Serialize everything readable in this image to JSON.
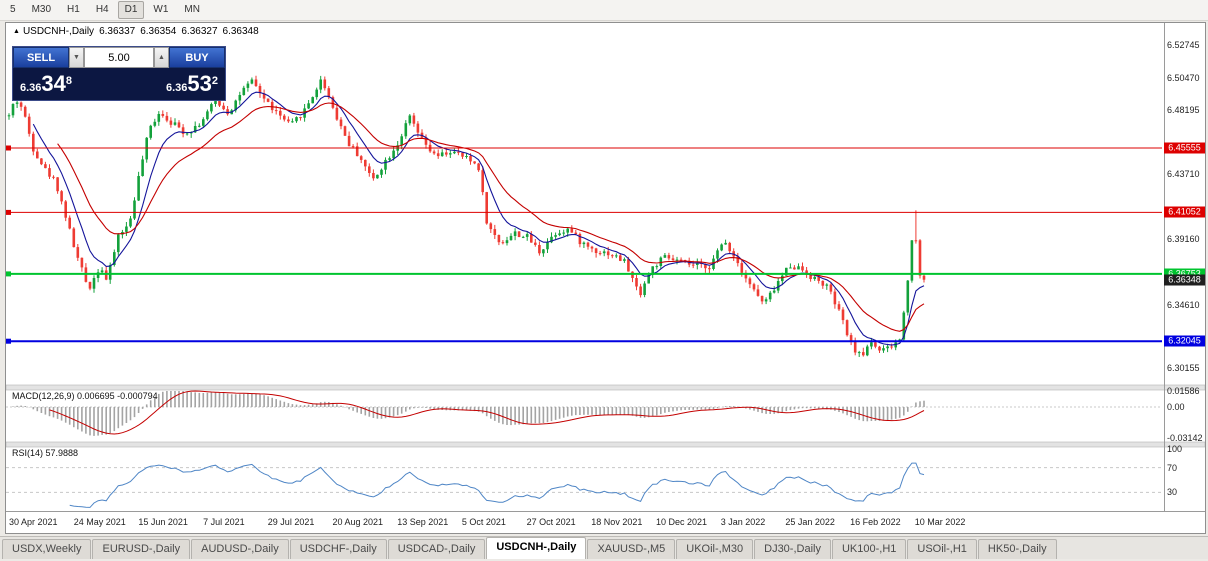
{
  "toolbar": {
    "timeframes": [
      {
        "label": "5",
        "active": false
      },
      {
        "label": "M30",
        "active": false
      },
      {
        "label": "H1",
        "active": false
      },
      {
        "label": "H4",
        "active": false
      },
      {
        "label": "D1",
        "active": true
      },
      {
        "label": "W1",
        "active": false
      },
      {
        "label": "MN",
        "active": false
      }
    ]
  },
  "chart": {
    "symbol_header": {
      "collapse_icon": "▲",
      "symbol": "USDCNH-,Daily",
      "open": "6.36337",
      "high": "6.36354",
      "low": "6.36327",
      "close": "6.36348"
    },
    "trade_panel": {
      "sell_label": "SELL",
      "buy_label": "BUY",
      "volume": "5.00",
      "icons": {
        "down": "▼",
        "up": "▲"
      },
      "bid": {
        "prefix": "6.36",
        "big": "34",
        "sup": "8"
      },
      "ask": {
        "prefix": "6.36",
        "big": "53",
        "sup": "2"
      }
    }
  },
  "chart_data": {
    "type": "candlestick",
    "title": "USDCNH-,Daily",
    "timeframe": "Daily",
    "num_candles": 227,
    "price_range": [
      6.2905,
      6.5395
    ],
    "last_close": 6.36348,
    "spike_high": 6.412,
    "y_ticks": [
      {
        "text": "6.52745",
        "value": 6.52745
      },
      {
        "text": "6.50470",
        "value": 6.5047
      },
      {
        "text": "6.48195",
        "value": 6.48195
      },
      {
        "text": "6.43710",
        "value": 6.4371
      },
      {
        "text": "6.39160",
        "value": 6.3916
      },
      {
        "text": "6.34610",
        "value": 6.3461
      },
      {
        "text": "6.30155",
        "value": 6.30155
      }
    ],
    "x_ticks": [
      "30 Apr 2021",
      "24 May 2021",
      "15 Jun 2021",
      "7 Jul 2021",
      "29 Jul 2021",
      "20 Aug 2021",
      "13 Sep 2021",
      "5 Oct 2021",
      "27 Oct 2021",
      "18 Nov 2021",
      "10 Dec 2021",
      "3 Jan 2022",
      "25 Jan 2022",
      "16 Feb 2022",
      "10 Mar 2022"
    ],
    "levels": [
      {
        "price": 6.45555,
        "label": "6.45555",
        "color": "#dd0000",
        "width": 1
      },
      {
        "price": 6.41052,
        "label": "6.41052",
        "color": "#dd0000",
        "width": 1
      },
      {
        "price": 6.36753,
        "label": "6.36753",
        "color": "#00c42f",
        "width": 2
      },
      {
        "price": 6.36348,
        "label": "6.36348",
        "color": "#1f1f1f",
        "width": 0
      },
      {
        "price": 6.32045,
        "label": "6.32045",
        "color": "#0000e0",
        "width": 2
      }
    ],
    "price_path": [
      [
        0.0,
        6.478
      ],
      [
        0.007,
        6.49
      ],
      [
        0.015,
        6.483
      ],
      [
        0.026,
        6.456
      ],
      [
        0.04,
        6.44
      ],
      [
        0.051,
        6.432
      ],
      [
        0.062,
        6.408
      ],
      [
        0.073,
        6.382
      ],
      [
        0.087,
        6.357
      ],
      [
        0.1,
        6.374
      ],
      [
        0.107,
        6.362
      ],
      [
        0.12,
        6.396
      ],
      [
        0.131,
        6.401
      ],
      [
        0.142,
        6.436
      ],
      [
        0.153,
        6.468
      ],
      [
        0.164,
        6.481
      ],
      [
        0.177,
        6.474
      ],
      [
        0.193,
        6.466
      ],
      [
        0.209,
        6.473
      ],
      [
        0.226,
        6.489
      ],
      [
        0.24,
        6.48
      ],
      [
        0.253,
        6.494
      ],
      [
        0.266,
        6.502
      ],
      [
        0.28,
        6.489
      ],
      [
        0.294,
        6.479
      ],
      [
        0.308,
        6.471
      ],
      [
        0.324,
        6.483
      ],
      [
        0.342,
        6.504
      ],
      [
        0.357,
        6.479
      ],
      [
        0.371,
        6.459
      ],
      [
        0.384,
        6.449
      ],
      [
        0.397,
        6.433
      ],
      [
        0.411,
        6.446
      ],
      [
        0.425,
        6.459
      ],
      [
        0.438,
        6.477
      ],
      [
        0.451,
        6.461
      ],
      [
        0.466,
        6.449
      ],
      [
        0.482,
        6.453
      ],
      [
        0.498,
        6.449
      ],
      [
        0.513,
        6.443
      ],
      [
        0.523,
        6.401
      ],
      [
        0.537,
        6.389
      ],
      [
        0.553,
        6.396
      ],
      [
        0.567,
        6.393
      ],
      [
        0.58,
        6.383
      ],
      [
        0.596,
        6.396
      ],
      [
        0.611,
        6.399
      ],
      [
        0.626,
        6.389
      ],
      [
        0.641,
        6.384
      ],
      [
        0.656,
        6.382
      ],
      [
        0.673,
        6.376
      ],
      [
        0.689,
        6.353
      ],
      [
        0.702,
        6.371
      ],
      [
        0.716,
        6.379
      ],
      [
        0.733,
        6.376
      ],
      [
        0.749,
        6.373
      ],
      [
        0.766,
        6.373
      ],
      [
        0.782,
        6.391
      ],
      [
        0.796,
        6.376
      ],
      [
        0.811,
        6.359
      ],
      [
        0.825,
        6.346
      ],
      [
        0.84,
        6.361
      ],
      [
        0.853,
        6.374
      ],
      [
        0.866,
        6.371
      ],
      [
        0.88,
        6.364
      ],
      [
        0.894,
        6.359
      ],
      [
        0.907,
        6.341
      ],
      [
        0.92,
        6.319
      ],
      [
        0.931,
        6.309
      ],
      [
        0.942,
        6.321
      ],
      [
        0.953,
        6.313
      ],
      [
        0.964,
        6.316
      ],
      [
        0.975,
        6.323
      ],
      [
        0.983,
        6.369
      ],
      [
        0.989,
        6.406
      ],
      [
        0.994,
        6.369
      ],
      [
        1.0,
        6.3635
      ]
    ],
    "colors": {
      "up": "#13a13b",
      "down": "#ee3b33",
      "ma_fast": "#14149a",
      "ma_slow": "#c40000",
      "macd_hist": "#a4a4a4",
      "macd_signal": "#c40000",
      "rsi": "#4f86c6",
      "grid": "#c8c8c8"
    },
    "ma_periods": {
      "fast": 8,
      "slow": 20
    },
    "indicators": {
      "macd": {
        "fast": 12,
        "slow": 26,
        "signal": 9
      },
      "rsi": {
        "period": 14
      }
    }
  },
  "macd_panel": {
    "name": "MACD(12,26,9)",
    "values": "0.006695 -0.000794",
    "axis": [
      {
        "text": "0.01586",
        "value": 0.01586
      },
      {
        "text": "0.00",
        "value": 0
      },
      {
        "text": "-0.03142",
        "value": -0.03142
      }
    ]
  },
  "rsi_panel": {
    "name": "RSI(14)",
    "value": "57.9888",
    "axis": [
      {
        "text": "100",
        "value": 100
      },
      {
        "text": "70",
        "value": 70
      },
      {
        "text": "30",
        "value": 30
      }
    ],
    "bands": [
      70,
      30
    ]
  },
  "tabs": [
    {
      "label": "USDX,Weekly",
      "active": false
    },
    {
      "label": "EURUSD-,Daily",
      "active": false
    },
    {
      "label": "AUDUSD-,Daily",
      "active": false
    },
    {
      "label": "USDCHF-,Daily",
      "active": false
    },
    {
      "label": "USDCAD-,Daily",
      "active": false
    },
    {
      "label": "USDCNH-,Daily",
      "active": true
    },
    {
      "label": "XAUUSD-,M5",
      "active": false
    },
    {
      "label": "UKOil-,M30",
      "active": false
    },
    {
      "label": "DJ30-,Daily",
      "active": false
    },
    {
      "label": "UK100-,H1",
      "active": false
    },
    {
      "label": "USOil-,H1",
      "active": false
    },
    {
      "label": "HK50-,Daily",
      "active": false
    }
  ]
}
